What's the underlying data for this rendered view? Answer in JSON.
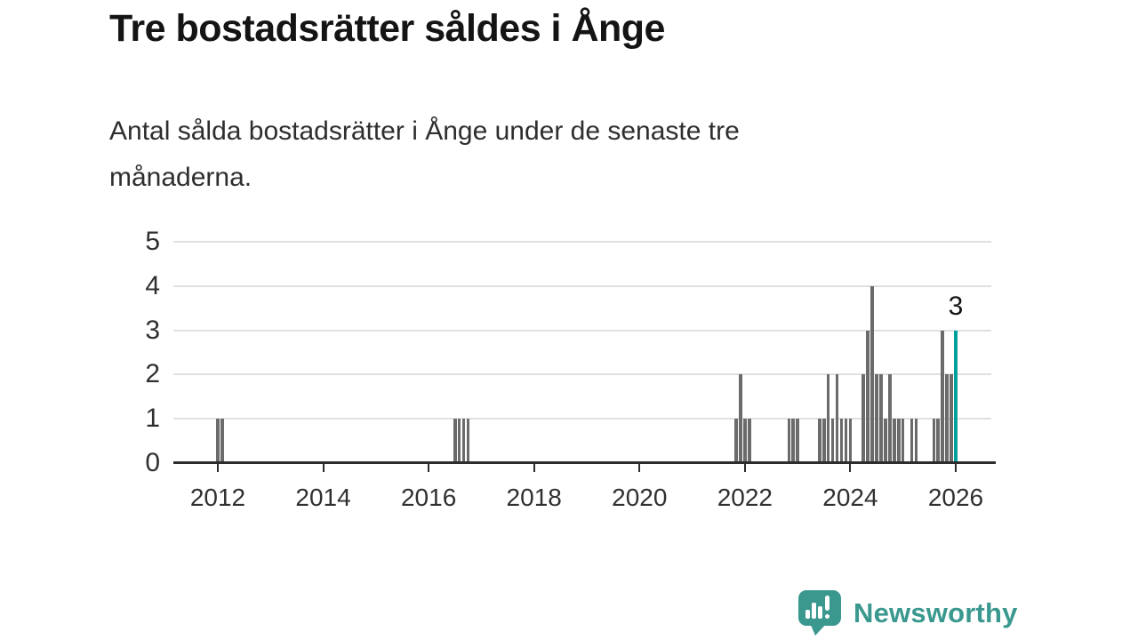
{
  "page": {
    "title": "Tre bostadsrätter såldes i Ånge",
    "subtitle": "Antal sålda bostadsrätter i Ånge under de senaste tre månaderna.",
    "subtitle_lines": [
      "Antal sålda bostadsrätter i Ånge under de senaste tre",
      "månaderna."
    ]
  },
  "colors": {
    "bar": "#6b6b6b",
    "highlight": "#00a09d",
    "brand": "#3a988e",
    "gridline": "#e0e0e0",
    "axis": "#2d2d2d",
    "text": "#303030"
  },
  "chart_data": {
    "type": "bar",
    "title": "Tre bostadsrätter såldes i Ånge",
    "subtitle": "Antal sålda bostadsrätter i Ånge under de senaste tre månaderna.",
    "ylabel": "",
    "xlabel": "",
    "ylim": [
      0,
      5
    ],
    "y_ticks": [
      0,
      1,
      2,
      3,
      4,
      5
    ],
    "x_tick_years": [
      2012,
      2014,
      2016,
      2018,
      2020,
      2022,
      2024,
      2026
    ],
    "grid": true,
    "legend": "none",
    "annotation": {
      "text": "3",
      "month": "2026-01"
    },
    "bars": [
      {
        "month": "2012-01",
        "value": 1
      },
      {
        "month": "2012-02",
        "value": 1
      },
      {
        "month": "2016-07",
        "value": 1
      },
      {
        "month": "2016-08",
        "value": 1
      },
      {
        "month": "2016-09",
        "value": 1
      },
      {
        "month": "2016-10",
        "value": 1
      },
      {
        "month": "2021-11",
        "value": 1
      },
      {
        "month": "2021-12",
        "value": 2
      },
      {
        "month": "2022-01",
        "value": 1
      },
      {
        "month": "2022-02",
        "value": 1
      },
      {
        "month": "2022-11",
        "value": 1
      },
      {
        "month": "2022-12",
        "value": 1
      },
      {
        "month": "2023-01",
        "value": 1
      },
      {
        "month": "2023-06",
        "value": 1
      },
      {
        "month": "2023-07",
        "value": 1
      },
      {
        "month": "2023-08",
        "value": 2
      },
      {
        "month": "2023-09",
        "value": 1
      },
      {
        "month": "2023-10",
        "value": 2
      },
      {
        "month": "2023-11",
        "value": 1
      },
      {
        "month": "2023-12",
        "value": 1
      },
      {
        "month": "2024-01",
        "value": 1
      },
      {
        "month": "2024-04",
        "value": 2
      },
      {
        "month": "2024-05",
        "value": 3
      },
      {
        "month": "2024-06",
        "value": 4
      },
      {
        "month": "2024-07",
        "value": 2
      },
      {
        "month": "2024-08",
        "value": 2
      },
      {
        "month": "2024-09",
        "value": 1
      },
      {
        "month": "2024-10",
        "value": 2
      },
      {
        "month": "2024-11",
        "value": 1
      },
      {
        "month": "2024-12",
        "value": 1
      },
      {
        "month": "2025-01",
        "value": 1
      },
      {
        "month": "2025-03",
        "value": 1
      },
      {
        "month": "2025-04",
        "value": 1
      },
      {
        "month": "2025-08",
        "value": 1
      },
      {
        "month": "2025-09",
        "value": 1
      },
      {
        "month": "2025-10",
        "value": 3
      },
      {
        "month": "2025-11",
        "value": 2
      },
      {
        "month": "2025-12",
        "value": 2
      },
      {
        "month": "2026-01",
        "value": 3,
        "highlight": true
      }
    ]
  },
  "logo": {
    "name": "Newsworthy"
  }
}
